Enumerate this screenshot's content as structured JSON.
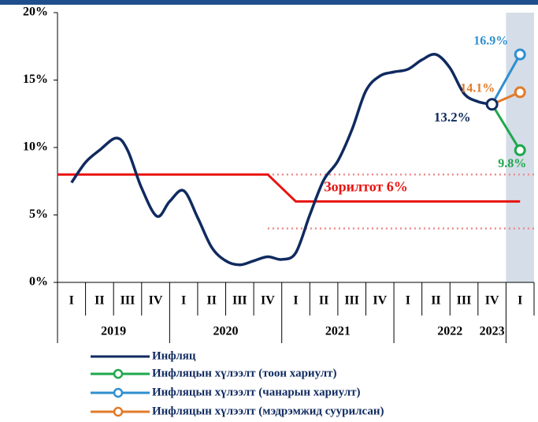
{
  "chart_data": {
    "type": "line",
    "categories": [
      "I",
      "II",
      "III",
      "IV",
      "I",
      "II",
      "III",
      "IV",
      "I",
      "II",
      "III",
      "IV",
      "I",
      "II",
      "III",
      "IV",
      "I"
    ],
    "groups": [
      "2019",
      "2020",
      "2021",
      "2022",
      "2023"
    ],
    "xlim": [
      -0.5,
      16.5
    ],
    "ylim": [
      0,
      20
    ],
    "yticks": [
      {
        "value": 0,
        "label": "0%"
      },
      {
        "value": 5,
        "label": "5%"
      },
      {
        "value": 10,
        "label": "10%"
      },
      {
        "value": 15,
        "label": "15%"
      },
      {
        "value": 20,
        "label": "20%"
      }
    ],
    "shaded_from": 15.5,
    "series": [
      {
        "name": "Инфляц",
        "color": "#0f2a5f",
        "x": [
          0,
          0.5,
          1,
          1.6,
          2,
          2.5,
          3.05,
          3.5,
          4,
          4.5,
          5,
          5.5,
          6,
          6.5,
          7,
          7.5,
          8,
          8.5,
          9,
          9.5,
          10,
          10.5,
          11,
          11.5,
          12,
          12.5,
          13,
          13.5,
          14,
          14.5,
          15
        ],
        "values": [
          7.4,
          8.9,
          9.8,
          10.7,
          9.8,
          7.0,
          4.9,
          6.0,
          6.8,
          4.8,
          2.6,
          1.6,
          1.3,
          1.6,
          1.9,
          1.7,
          2.2,
          5.0,
          7.6,
          9.0,
          11.3,
          14.2,
          15.3,
          15.6,
          15.8,
          16.5,
          16.9,
          15.9,
          14.0,
          13.4,
          13.2
        ]
      },
      {
        "name": "Инфляцын хүлээлт (тоон хариулт)",
        "color": "#1ea84c",
        "x": [
          15,
          16
        ],
        "values": [
          13.2,
          9.8
        ],
        "value_labels": [
          null,
          "9.8%"
        ]
      },
      {
        "name": "Инфляцын хүлээлт (чанарын хариулт)",
        "color": "#2f8fcf",
        "x": [
          15,
          16
        ],
        "values": [
          13.2,
          16.9
        ],
        "value_labels": [
          null,
          "16.9%"
        ]
      },
      {
        "name": "Инфляцын хүлээлт (мэдрэмжид суурилсан)",
        "color": "#e07b2a",
        "x": [
          15,
          16
        ],
        "values": [
          13.2,
          14.1
        ],
        "value_labels": [
          null,
          "14.1%"
        ]
      }
    ],
    "annotations": [
      {
        "text": "13.2%",
        "x": 15,
        "y": 13.2
      }
    ],
    "target": {
      "label": "Зорилтот 6%",
      "color": "#e8130f",
      "x": [
        -0.5,
        7,
        8,
        16
      ],
      "values": [
        8,
        8,
        6,
        6
      ]
    },
    "band": {
      "color": "#f08a8a",
      "x": [
        7,
        16.5
      ],
      "values": [
        8,
        4
      ]
    }
  }
}
